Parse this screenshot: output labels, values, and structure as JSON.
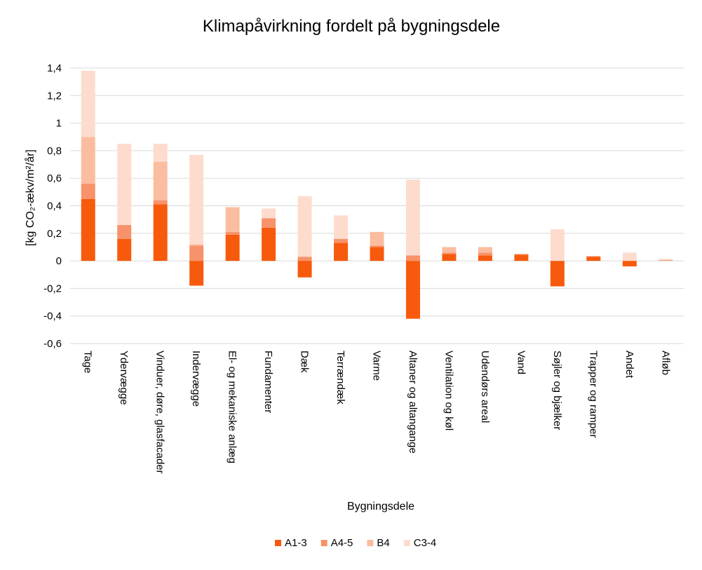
{
  "chart_data": {
    "type": "bar",
    "stacked": true,
    "title": "Klimapåvirkning fordelt på bygningsdele",
    "xlabel": "Bygningsdele",
    "ylabel": "[kg CO₂-ækv/m²/år]",
    "ylim": [
      -0.6,
      1.4
    ],
    "ytick_step": 0.2,
    "ytick_labels": [
      "-0,6",
      "-0,4",
      "-0,2",
      "0",
      "0,2",
      "0,4",
      "0,6",
      "0,8",
      "1",
      "1,2",
      "1,4"
    ],
    "grid": true,
    "legend_position": "bottom",
    "categories": [
      "Tage",
      "Ydervægge",
      "Vinduer, døre, glasfacader",
      "Indervægge",
      "El- og mekaniske anlæg",
      "Fundamenter",
      "Dæk",
      "Terrændæk",
      "Varme",
      "Altaner og altangange",
      "Ventilation og køl",
      "Udendørs areal",
      "Vand",
      "Søjler og bjælker",
      "Trapper og ramper",
      "Andet",
      "Afløb"
    ],
    "series": [
      {
        "name": "A1-3",
        "color": "#f75a0c",
        "values": [
          0.45,
          0.16,
          0.41,
          -0.18,
          0.19,
          0.24,
          -0.12,
          0.13,
          0.1,
          -0.42,
          0.05,
          0.04,
          0.045,
          -0.185,
          0.03,
          -0.04,
          0.0
        ]
      },
      {
        "name": "A4-5",
        "color": "#f8926a",
        "values": [
          0.11,
          0.1,
          0.03,
          0.11,
          0.02,
          0.07,
          0.03,
          0.03,
          0.01,
          0.04,
          0.01,
          0.02,
          0.005,
          0.0,
          0.005,
          0.0,
          0.005
        ]
      },
      {
        "name": "B4",
        "color": "#fbbd9f",
        "values": [
          0.34,
          0.0,
          0.28,
          0.01,
          0.18,
          0.0,
          0.0,
          0.0,
          0.1,
          0.0,
          0.04,
          0.04,
          0.0,
          0.0,
          0.0,
          0.0,
          0.0
        ]
      },
      {
        "name": "C3-4",
        "color": "#fddcce",
        "values": [
          0.48,
          0.59,
          0.13,
          0.65,
          0.0,
          0.07,
          0.44,
          0.17,
          0.0,
          0.55,
          0.0,
          0.0,
          0.0,
          0.23,
          0.0,
          0.06,
          0.01
        ]
      }
    ]
  }
}
